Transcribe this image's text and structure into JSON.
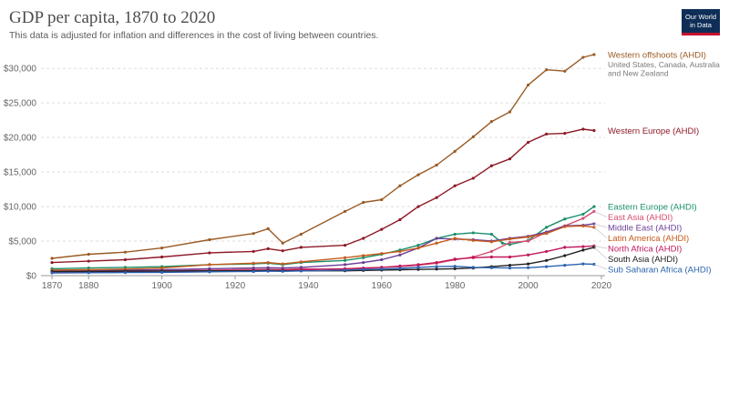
{
  "header": {
    "title": "GDP per capita, 1870 to 2020",
    "subtitle": "This data is adjusted for inflation and differences in the cost of living between countries."
  },
  "logo": {
    "line1": "Our World",
    "line2": "in Data",
    "bg": "#0f2e57",
    "accent": "#c8102e"
  },
  "chart_data": {
    "type": "line",
    "title": "GDP per capita, 1870 to 2020",
    "subtitle": "This data is adjusted for inflation and differences in the cost of living between countries.",
    "xlim": [
      1867,
      2021
    ],
    "ylim": [
      0,
      32000
    ],
    "x_ticks": [
      1870,
      1880,
      1900,
      1920,
      1940,
      1960,
      1980,
      2000,
      2020
    ],
    "y_ticks": [
      {
        "value": 0,
        "label": "$0"
      },
      {
        "value": 5000,
        "label": "$5,000"
      },
      {
        "value": 10000,
        "label": "$10,000"
      },
      {
        "value": 15000,
        "label": "$15,000"
      },
      {
        "value": 20000,
        "label": "$20,000"
      },
      {
        "value": 25000,
        "label": "$25,000"
      },
      {
        "value": 30000,
        "label": "$30,000"
      }
    ],
    "grid": "horizontal dashed",
    "legend": "right, inline labels at line ends",
    "series": [
      {
        "name": "Western offshoots (AHDI)",
        "note": "United States, Canada, Australia and New Zealand",
        "color": "#9a5b25",
        "points": [
          [
            1870,
            2500
          ],
          [
            1880,
            3100
          ],
          [
            1890,
            3400
          ],
          [
            1900,
            4000
          ],
          [
            1913,
            5200
          ],
          [
            1925,
            6100
          ],
          [
            1929,
            6800
          ],
          [
            1933,
            4700
          ],
          [
            1938,
            6000
          ],
          [
            1950,
            9300
          ],
          [
            1955,
            10600
          ],
          [
            1960,
            11000
          ],
          [
            1965,
            13000
          ],
          [
            1970,
            14600
          ],
          [
            1975,
            16000
          ],
          [
            1980,
            18000
          ],
          [
            1985,
            20100
          ],
          [
            1990,
            22300
          ],
          [
            1995,
            23700
          ],
          [
            2000,
            27600
          ],
          [
            2005,
            29800
          ],
          [
            2010,
            29600
          ],
          [
            2015,
            31600
          ],
          [
            2018,
            32000
          ]
        ]
      },
      {
        "name": "Western Europe (AHDI)",
        "note": "",
        "color": "#8e1a26",
        "points": [
          [
            1870,
            1900
          ],
          [
            1880,
            2100
          ],
          [
            1890,
            2300
          ],
          [
            1900,
            2700
          ],
          [
            1913,
            3300
          ],
          [
            1925,
            3500
          ],
          [
            1929,
            3900
          ],
          [
            1933,
            3600
          ],
          [
            1938,
            4100
          ],
          [
            1950,
            4400
          ],
          [
            1955,
            5400
          ],
          [
            1960,
            6700
          ],
          [
            1965,
            8100
          ],
          [
            1970,
            10000
          ],
          [
            1975,
            11300
          ],
          [
            1980,
            13000
          ],
          [
            1985,
            14100
          ],
          [
            1990,
            15900
          ],
          [
            1995,
            16900
          ],
          [
            2000,
            19300
          ],
          [
            2005,
            20500
          ],
          [
            2010,
            20600
          ],
          [
            2015,
            21200
          ],
          [
            2018,
            21000
          ]
        ]
      },
      {
        "name": "Eastern Europe (AHDI)",
        "note": "",
        "color": "#1a8f6b",
        "points": [
          [
            1870,
            1000
          ],
          [
            1880,
            1100
          ],
          [
            1890,
            1200
          ],
          [
            1900,
            1300
          ],
          [
            1913,
            1600
          ],
          [
            1925,
            1700
          ],
          [
            1929,
            1800
          ],
          [
            1933,
            1600
          ],
          [
            1938,
            1900
          ],
          [
            1950,
            2200
          ],
          [
            1955,
            2600
          ],
          [
            1960,
            3100
          ],
          [
            1965,
            3700
          ],
          [
            1970,
            4400
          ],
          [
            1975,
            5400
          ],
          [
            1980,
            6000
          ],
          [
            1985,
            6200
          ],
          [
            1990,
            6000
          ],
          [
            1993,
            4700
          ],
          [
            1995,
            4500
          ],
          [
            2000,
            5100
          ],
          [
            2005,
            7000
          ],
          [
            2010,
            8200
          ],
          [
            2015,
            8900
          ],
          [
            2018,
            10000
          ]
        ]
      },
      {
        "name": "East Asia (AHDI)",
        "note": "",
        "color": "#d64f70",
        "points": [
          [
            1870,
            600
          ],
          [
            1880,
            600
          ],
          [
            1890,
            700
          ],
          [
            1900,
            700
          ],
          [
            1913,
            800
          ],
          [
            1925,
            900
          ],
          [
            1929,
            900
          ],
          [
            1933,
            900
          ],
          [
            1938,
            1000
          ],
          [
            1950,
            900
          ],
          [
            1955,
            1000
          ],
          [
            1960,
            1200
          ],
          [
            1965,
            1300
          ],
          [
            1970,
            1500
          ],
          [
            1975,
            1800
          ],
          [
            1980,
            2300
          ],
          [
            1985,
            2700
          ],
          [
            1990,
            3500
          ],
          [
            1995,
            4800
          ],
          [
            2000,
            5000
          ],
          [
            2005,
            6300
          ],
          [
            2010,
            7200
          ],
          [
            2015,
            8300
          ],
          [
            2018,
            9300
          ]
        ]
      },
      {
        "name": "Middle East (AHDI)",
        "note": "",
        "color": "#6b3f97",
        "points": [
          [
            1870,
            700
          ],
          [
            1880,
            750
          ],
          [
            1890,
            800
          ],
          [
            1900,
            850
          ],
          [
            1913,
            1000
          ],
          [
            1925,
            1100
          ],
          [
            1929,
            1150
          ],
          [
            1933,
            1100
          ],
          [
            1938,
            1200
          ],
          [
            1950,
            1600
          ],
          [
            1955,
            1900
          ],
          [
            1960,
            2300
          ],
          [
            1965,
            3000
          ],
          [
            1970,
            4000
          ],
          [
            1975,
            5400
          ],
          [
            1980,
            5300
          ],
          [
            1985,
            5200
          ],
          [
            1990,
            5000
          ],
          [
            1995,
            5400
          ],
          [
            2000,
            5700
          ],
          [
            2005,
            6300
          ],
          [
            2010,
            7200
          ],
          [
            2015,
            7300
          ],
          [
            2018,
            7500
          ]
        ]
      },
      {
        "name": "Latin America (AHDI)",
        "note": "",
        "color": "#c65a1b",
        "points": [
          [
            1870,
            800
          ],
          [
            1880,
            850
          ],
          [
            1890,
            950
          ],
          [
            1900,
            1100
          ],
          [
            1913,
            1600
          ],
          [
            1925,
            1800
          ],
          [
            1929,
            1900
          ],
          [
            1933,
            1700
          ],
          [
            1938,
            2000
          ],
          [
            1950,
            2600
          ],
          [
            1955,
            2900
          ],
          [
            1960,
            3200
          ],
          [
            1965,
            3500
          ],
          [
            1970,
            4000
          ],
          [
            1975,
            4700
          ],
          [
            1980,
            5400
          ],
          [
            1985,
            5100
          ],
          [
            1990,
            4900
          ],
          [
            1995,
            5300
          ],
          [
            2000,
            5600
          ],
          [
            2005,
            6100
          ],
          [
            2010,
            7100
          ],
          [
            2015,
            7200
          ],
          [
            2018,
            7000
          ]
        ]
      },
      {
        "name": "North Africa (AHDI)",
        "note": "",
        "color": "#c2185b",
        "points": [
          [
            1870,
            500
          ],
          [
            1880,
            550
          ],
          [
            1890,
            600
          ],
          [
            1900,
            650
          ],
          [
            1913,
            700
          ],
          [
            1925,
            750
          ],
          [
            1929,
            800
          ],
          [
            1933,
            800
          ],
          [
            1938,
            850
          ],
          [
            1950,
            1000
          ],
          [
            1955,
            1100
          ],
          [
            1960,
            1200
          ],
          [
            1965,
            1400
          ],
          [
            1970,
            1600
          ],
          [
            1975,
            1900
          ],
          [
            1980,
            2400
          ],
          [
            1985,
            2600
          ],
          [
            1990,
            2700
          ],
          [
            1995,
            2700
          ],
          [
            2000,
            3000
          ],
          [
            2005,
            3500
          ],
          [
            2010,
            4100
          ],
          [
            2015,
            4200
          ],
          [
            2018,
            4300
          ]
        ]
      },
      {
        "name": "South Asia (AHDI)",
        "note": "",
        "color": "#222222",
        "points": [
          [
            1870,
            600
          ],
          [
            1880,
            600
          ],
          [
            1890,
            650
          ],
          [
            1900,
            650
          ],
          [
            1913,
            700
          ],
          [
            1925,
            700
          ],
          [
            1929,
            750
          ],
          [
            1933,
            700
          ],
          [
            1938,
            700
          ],
          [
            1950,
            700
          ],
          [
            1955,
            750
          ],
          [
            1960,
            800
          ],
          [
            1965,
            850
          ],
          [
            1970,
            900
          ],
          [
            1975,
            950
          ],
          [
            1980,
            1000
          ],
          [
            1985,
            1100
          ],
          [
            1990,
            1300
          ],
          [
            1995,
            1500
          ],
          [
            2000,
            1700
          ],
          [
            2005,
            2200
          ],
          [
            2010,
            2900
          ],
          [
            2015,
            3700
          ],
          [
            2018,
            4100
          ]
        ]
      },
      {
        "name": "Sub Saharan Africa (AHDI)",
        "note": "",
        "color": "#2c63b0",
        "points": [
          [
            1870,
            400
          ],
          [
            1880,
            420
          ],
          [
            1890,
            450
          ],
          [
            1900,
            480
          ],
          [
            1913,
            550
          ],
          [
            1925,
            600
          ],
          [
            1929,
            650
          ],
          [
            1933,
            620
          ],
          [
            1938,
            680
          ],
          [
            1950,
            800
          ],
          [
            1955,
            900
          ],
          [
            1960,
            950
          ],
          [
            1965,
            1050
          ],
          [
            1970,
            1200
          ],
          [
            1975,
            1300
          ],
          [
            1980,
            1350
          ],
          [
            1985,
            1200
          ],
          [
            1990,
            1150
          ],
          [
            1995,
            1100
          ],
          [
            2000,
            1150
          ],
          [
            2005,
            1300
          ],
          [
            2010,
            1500
          ],
          [
            2015,
            1700
          ],
          [
            2018,
            1650
          ]
        ]
      }
    ]
  }
}
